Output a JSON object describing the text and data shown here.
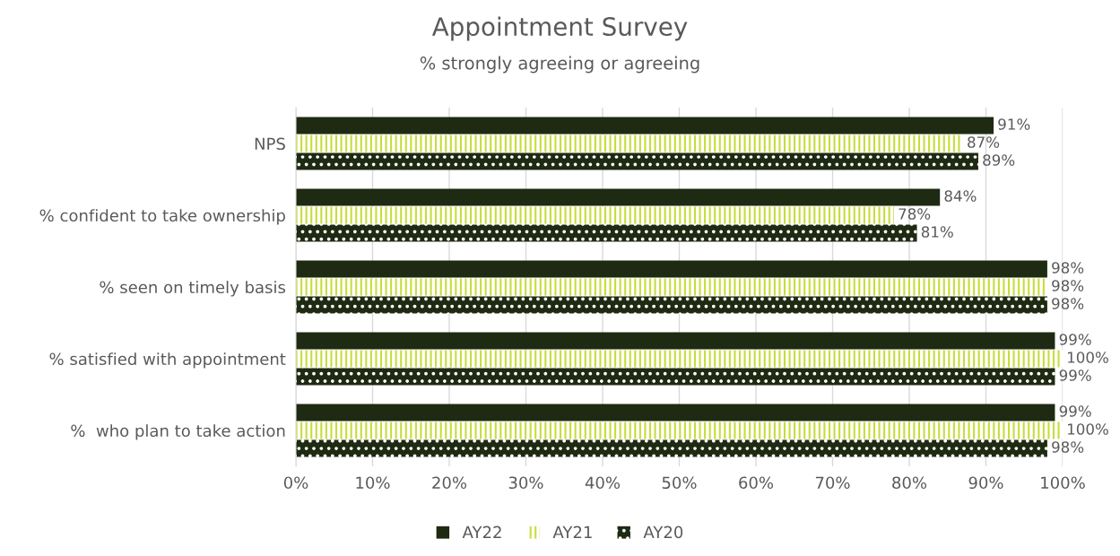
{
  "chart_data": {
    "type": "bar",
    "orientation": "horizontal",
    "title": "Appointment Survey",
    "subtitle": "% strongly agreeing or agreeing",
    "categories": [
      "NPS",
      "% confident to take ownership",
      "% seen on timely basis",
      "% satisfied with appointment",
      "%  who plan to take action"
    ],
    "series": [
      {
        "name": "AY22",
        "color": "#1e2a12",
        "values": [
          91,
          84,
          98,
          99,
          99
        ],
        "value_labels": [
          "91%",
          "84%",
          "98%",
          "99%",
          "99%"
        ]
      },
      {
        "name": "AY21",
        "color": "#c8dc3c",
        "values": [
          87,
          78,
          98,
          100,
          100
        ],
        "value_labels": [
          "87%",
          "78%",
          "98%",
          "100%",
          "100%"
        ]
      },
      {
        "name": "AY20",
        "color": "#1e2a12",
        "values": [
          89,
          81,
          98,
          99,
          98
        ],
        "value_labels": [
          "89%",
          "81%",
          "98%",
          "99%",
          "98%"
        ]
      }
    ],
    "xlim": [
      0,
      100
    ],
    "xticks": [
      {
        "value": 0,
        "label": "0%"
      },
      {
        "value": 10,
        "label": "10%"
      },
      {
        "value": 20,
        "label": "20%"
      },
      {
        "value": 30,
        "label": "30%"
      },
      {
        "value": 40,
        "label": "40%"
      },
      {
        "value": 50,
        "label": "50%"
      },
      {
        "value": 60,
        "label": "60%"
      },
      {
        "value": 70,
        "label": "70%"
      },
      {
        "value": 80,
        "label": "80%"
      },
      {
        "value": 90,
        "label": "90%"
      },
      {
        "value": 100,
        "label": "100%"
      }
    ],
    "grid": "x",
    "legend": "bottom"
  }
}
